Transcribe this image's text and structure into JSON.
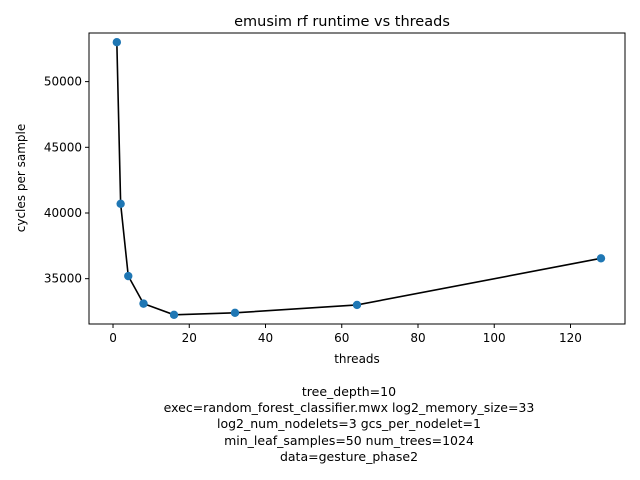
{
  "chart_data": {
    "type": "line",
    "title": "emusim rf runtime vs threads",
    "xlabel": "threads",
    "ylabel": "cycles per sample",
    "x": [
      1,
      2,
      4,
      8,
      16,
      32,
      64,
      128
    ],
    "series": [
      {
        "values": [
          53000,
          40700,
          35200,
          33100,
          32250,
          32400,
          33000,
          36550
        ]
      }
    ],
    "xlim": [
      -6.3,
      134.3
    ],
    "ylim": [
      31550,
      53700
    ],
    "xticks": [
      0,
      20,
      40,
      60,
      80,
      100,
      120
    ],
    "yticks": [
      35000,
      40000,
      45000,
      50000
    ],
    "line_color": "#000000",
    "marker_color": "#1f77b4",
    "grid": false,
    "legend": "none"
  },
  "caption_lines": [
    "tree_depth=10",
    "exec=random_forest_classifier.mwx   log2_memory_size=33",
    "log2_num_nodelets=3   gcs_per_nodelet=1",
    "min_leaf_samples=50   num_trees=1024",
    "data=gesture_phase2"
  ]
}
